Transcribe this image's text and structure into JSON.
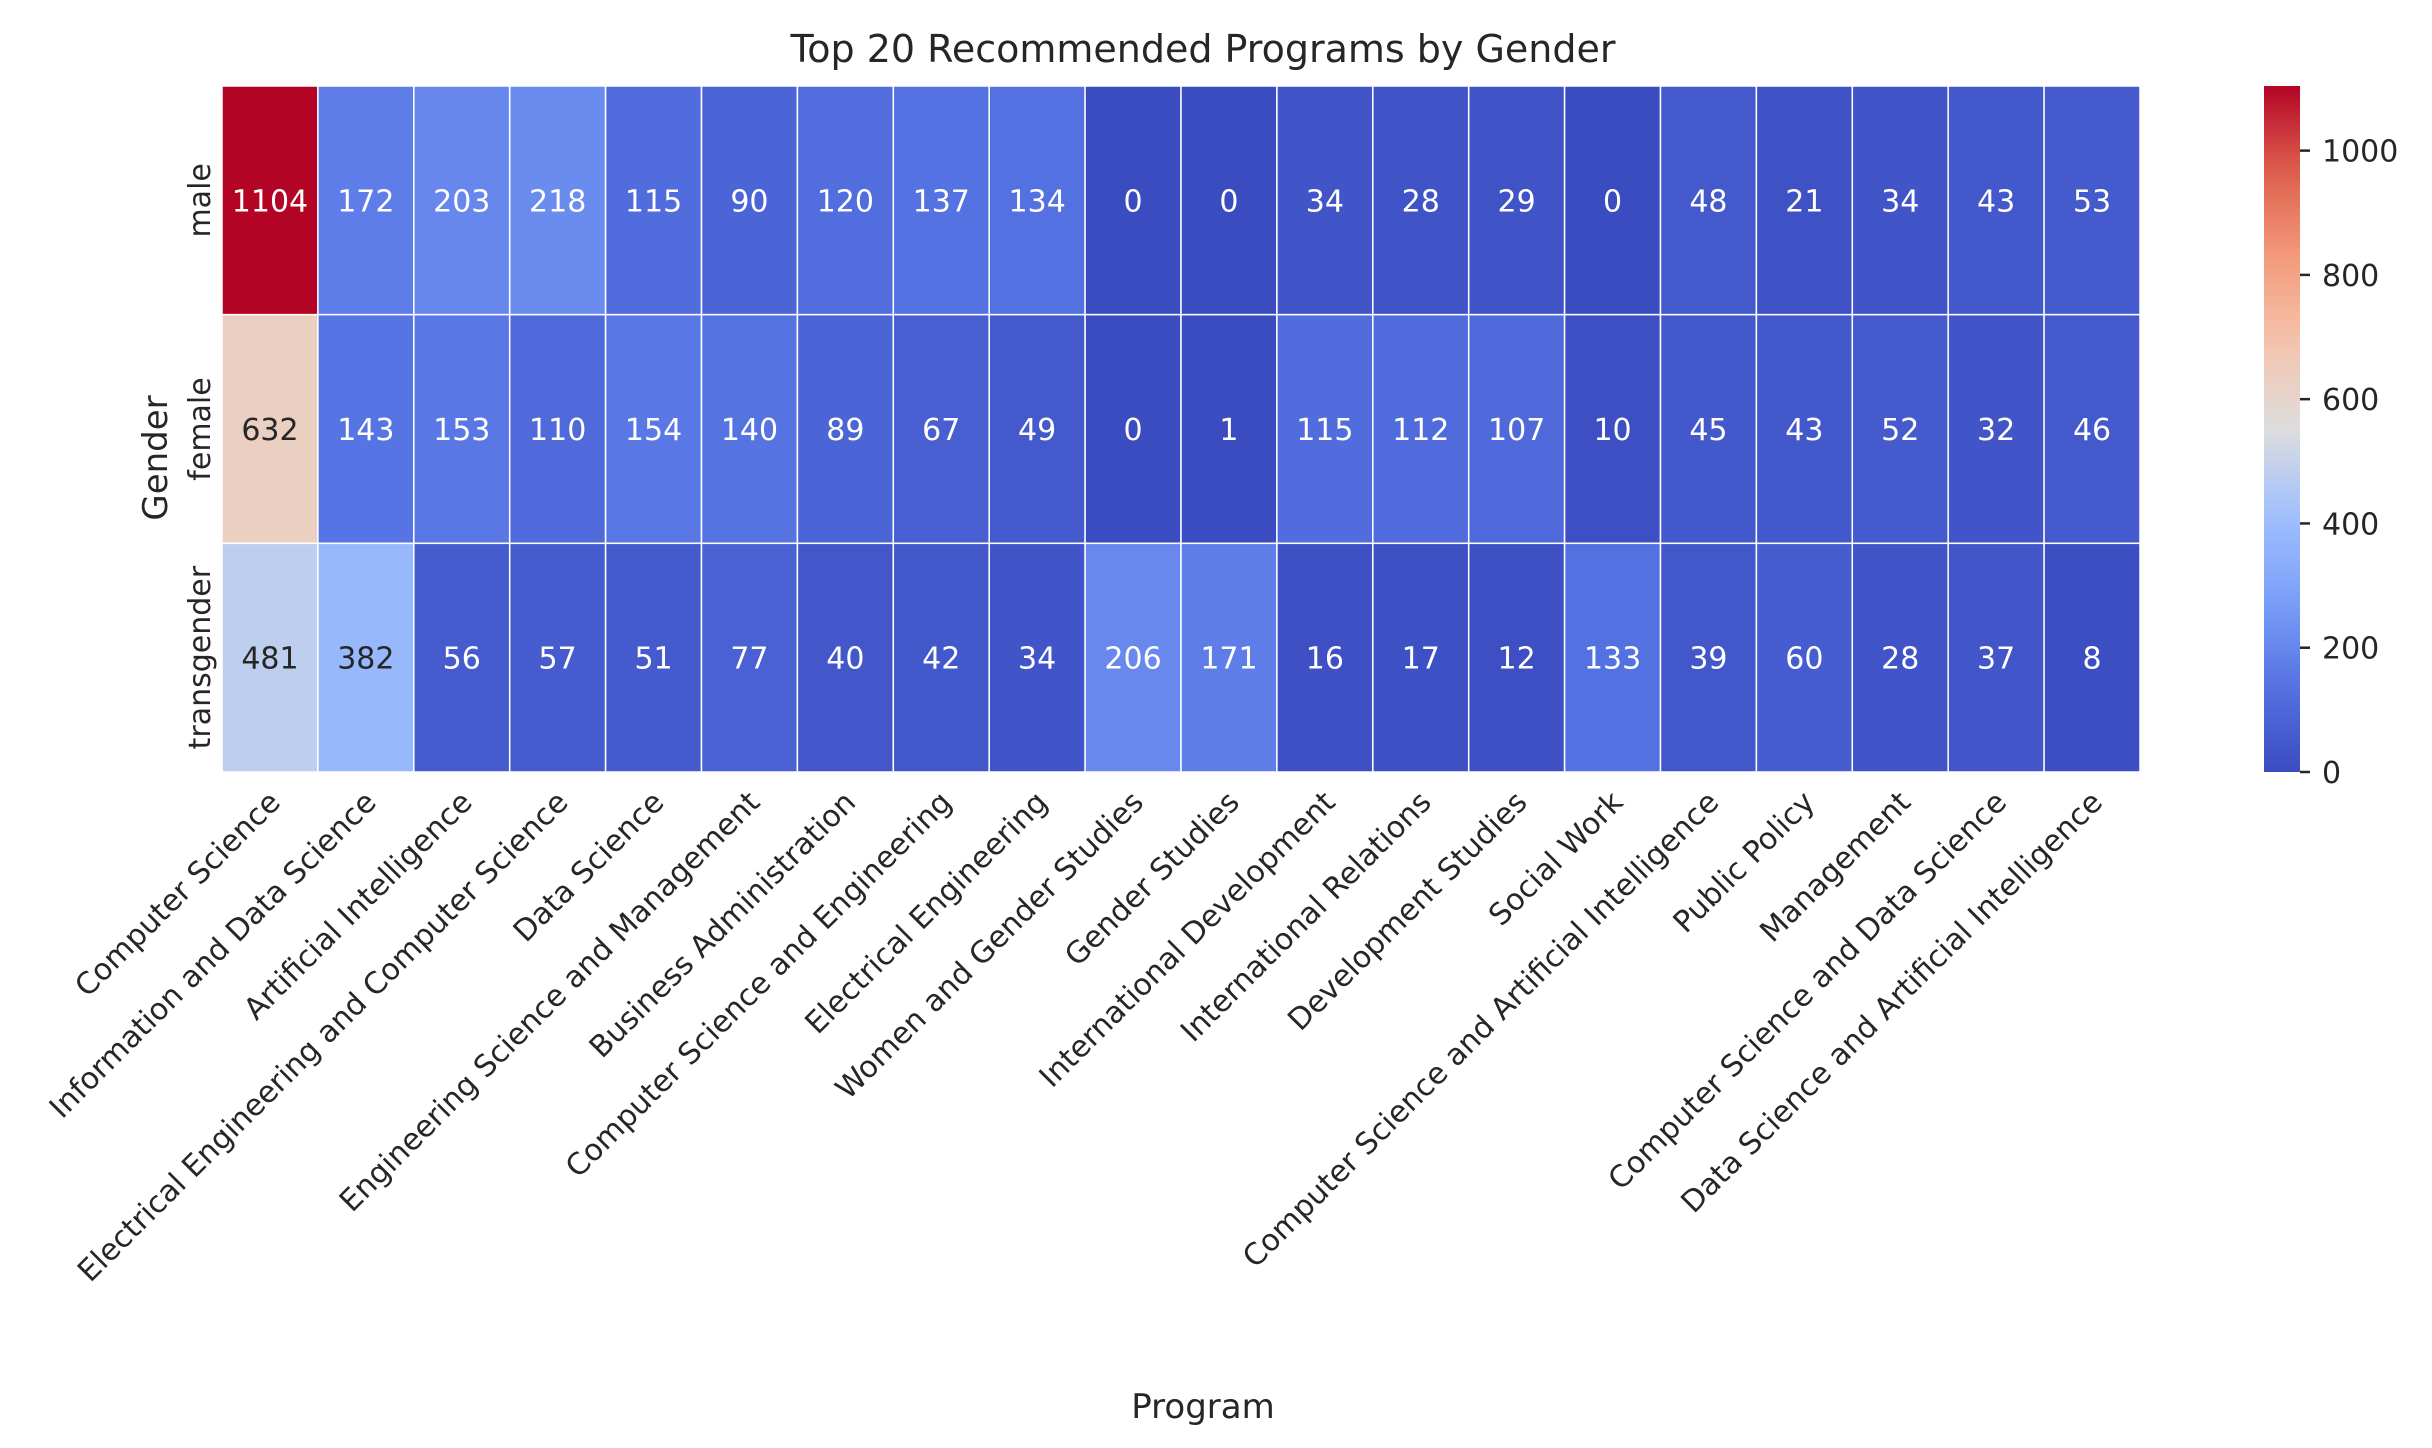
{
  "chart_data": {
    "type": "heatmap",
    "title": "Top 20 Recommended Programs by Gender",
    "xlabel": "Program",
    "ylabel": "Gender",
    "rows": [
      "male",
      "female",
      "transgender"
    ],
    "columns": [
      "Computer Science",
      "Information and Data Science",
      "Artificial Intelligence",
      "Electrical Engineering and Computer Science",
      "Data Science",
      "Engineering Science and Management",
      "Business Administration",
      "Computer Science and Engineering",
      "Electrical Engineering",
      "Women and Gender Studies",
      "Gender Studies",
      "International Development",
      "International Relations",
      "Development Studies",
      "Social Work",
      "Computer Science and Artificial Intelligence",
      "Public Policy",
      "Management",
      "Computer Science and Data Science",
      "Data Science and Artificial Intelligence"
    ],
    "values": [
      [
        1104,
        172,
        203,
        218,
        115,
        90,
        120,
        137,
        134,
        0,
        0,
        34,
        28,
        29,
        0,
        48,
        21,
        34,
        43,
        53
      ],
      [
        632,
        143,
        153,
        110,
        154,
        140,
        89,
        67,
        49,
        0,
        1,
        115,
        112,
        107,
        10,
        45,
        43,
        52,
        32,
        46
      ],
      [
        481,
        382,
        56,
        57,
        51,
        77,
        40,
        42,
        34,
        206,
        171,
        16,
        17,
        12,
        133,
        39,
        60,
        28,
        37,
        8
      ]
    ],
    "colormap": "coolwarm",
    "vmin": 0,
    "vmax": 1104,
    "colorbar_ticks": [
      0,
      200,
      400,
      600,
      800,
      1000
    ],
    "grid_line_color": "#ffffff"
  }
}
